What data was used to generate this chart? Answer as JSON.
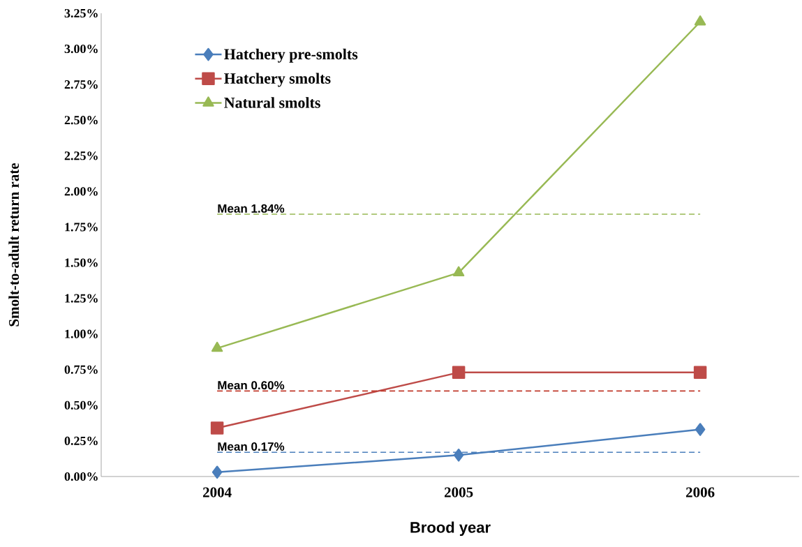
{
  "chart_data": {
    "type": "line",
    "xlabel": "Brood year",
    "ylabel": "Smolt-to-adult  return rate",
    "categories": [
      "2004",
      "2005",
      "2006"
    ],
    "series": [
      {
        "name": "Hatchery pre-smolts",
        "color": "#4a7ebb",
        "marker": "diamond",
        "values": [
          0.03,
          0.15,
          0.33
        ]
      },
      {
        "name": "Hatchery smolts",
        "color": "#be4b48",
        "marker": "square",
        "values": [
          0.34,
          0.73,
          0.73
        ]
      },
      {
        "name": "Natural smolts",
        "color": "#98b954",
        "marker": "triangle",
        "values": [
          0.9,
          1.43,
          3.19
        ]
      }
    ],
    "ylim": [
      0,
      3.25
    ],
    "yticks": [
      {
        "value": 0,
        "label": "0.00%"
      },
      {
        "value": 0.25,
        "label": "0.25%"
      },
      {
        "value": 0.5,
        "label": "0.50%"
      },
      {
        "value": 0.75,
        "label": "0.75%"
      },
      {
        "value": 1,
        "label": "1.00%"
      },
      {
        "value": 1.25,
        "label": "1.25%"
      },
      {
        "value": 1.5,
        "label": "1.50%"
      },
      {
        "value": 1.75,
        "label": "1.75%"
      },
      {
        "value": 2,
        "label": "2.00%"
      },
      {
        "value": 2.25,
        "label": "2.25%"
      },
      {
        "value": 2.5,
        "label": "2.50%"
      },
      {
        "value": 2.75,
        "label": "2.75%"
      },
      {
        "value": 3,
        "label": "3.00%"
      },
      {
        "value": 3.25,
        "label": "3.25%"
      }
    ],
    "ref_lines": [
      {
        "axis": "y",
        "value": 1.84,
        "label": "Mean 1.84%",
        "color": "#98b954",
        "line_style": "dashed"
      },
      {
        "axis": "y",
        "value": 0.6,
        "label": "Mean 0.60%",
        "color": "#c0392b",
        "line_style": "dashed"
      },
      {
        "axis": "y",
        "value": 0.17,
        "label": "Mean 0.17%",
        "color": "#4a7ebb",
        "line_style": "dashed"
      }
    ],
    "legend": "top left",
    "grid": false,
    "line_style": "solid"
  }
}
